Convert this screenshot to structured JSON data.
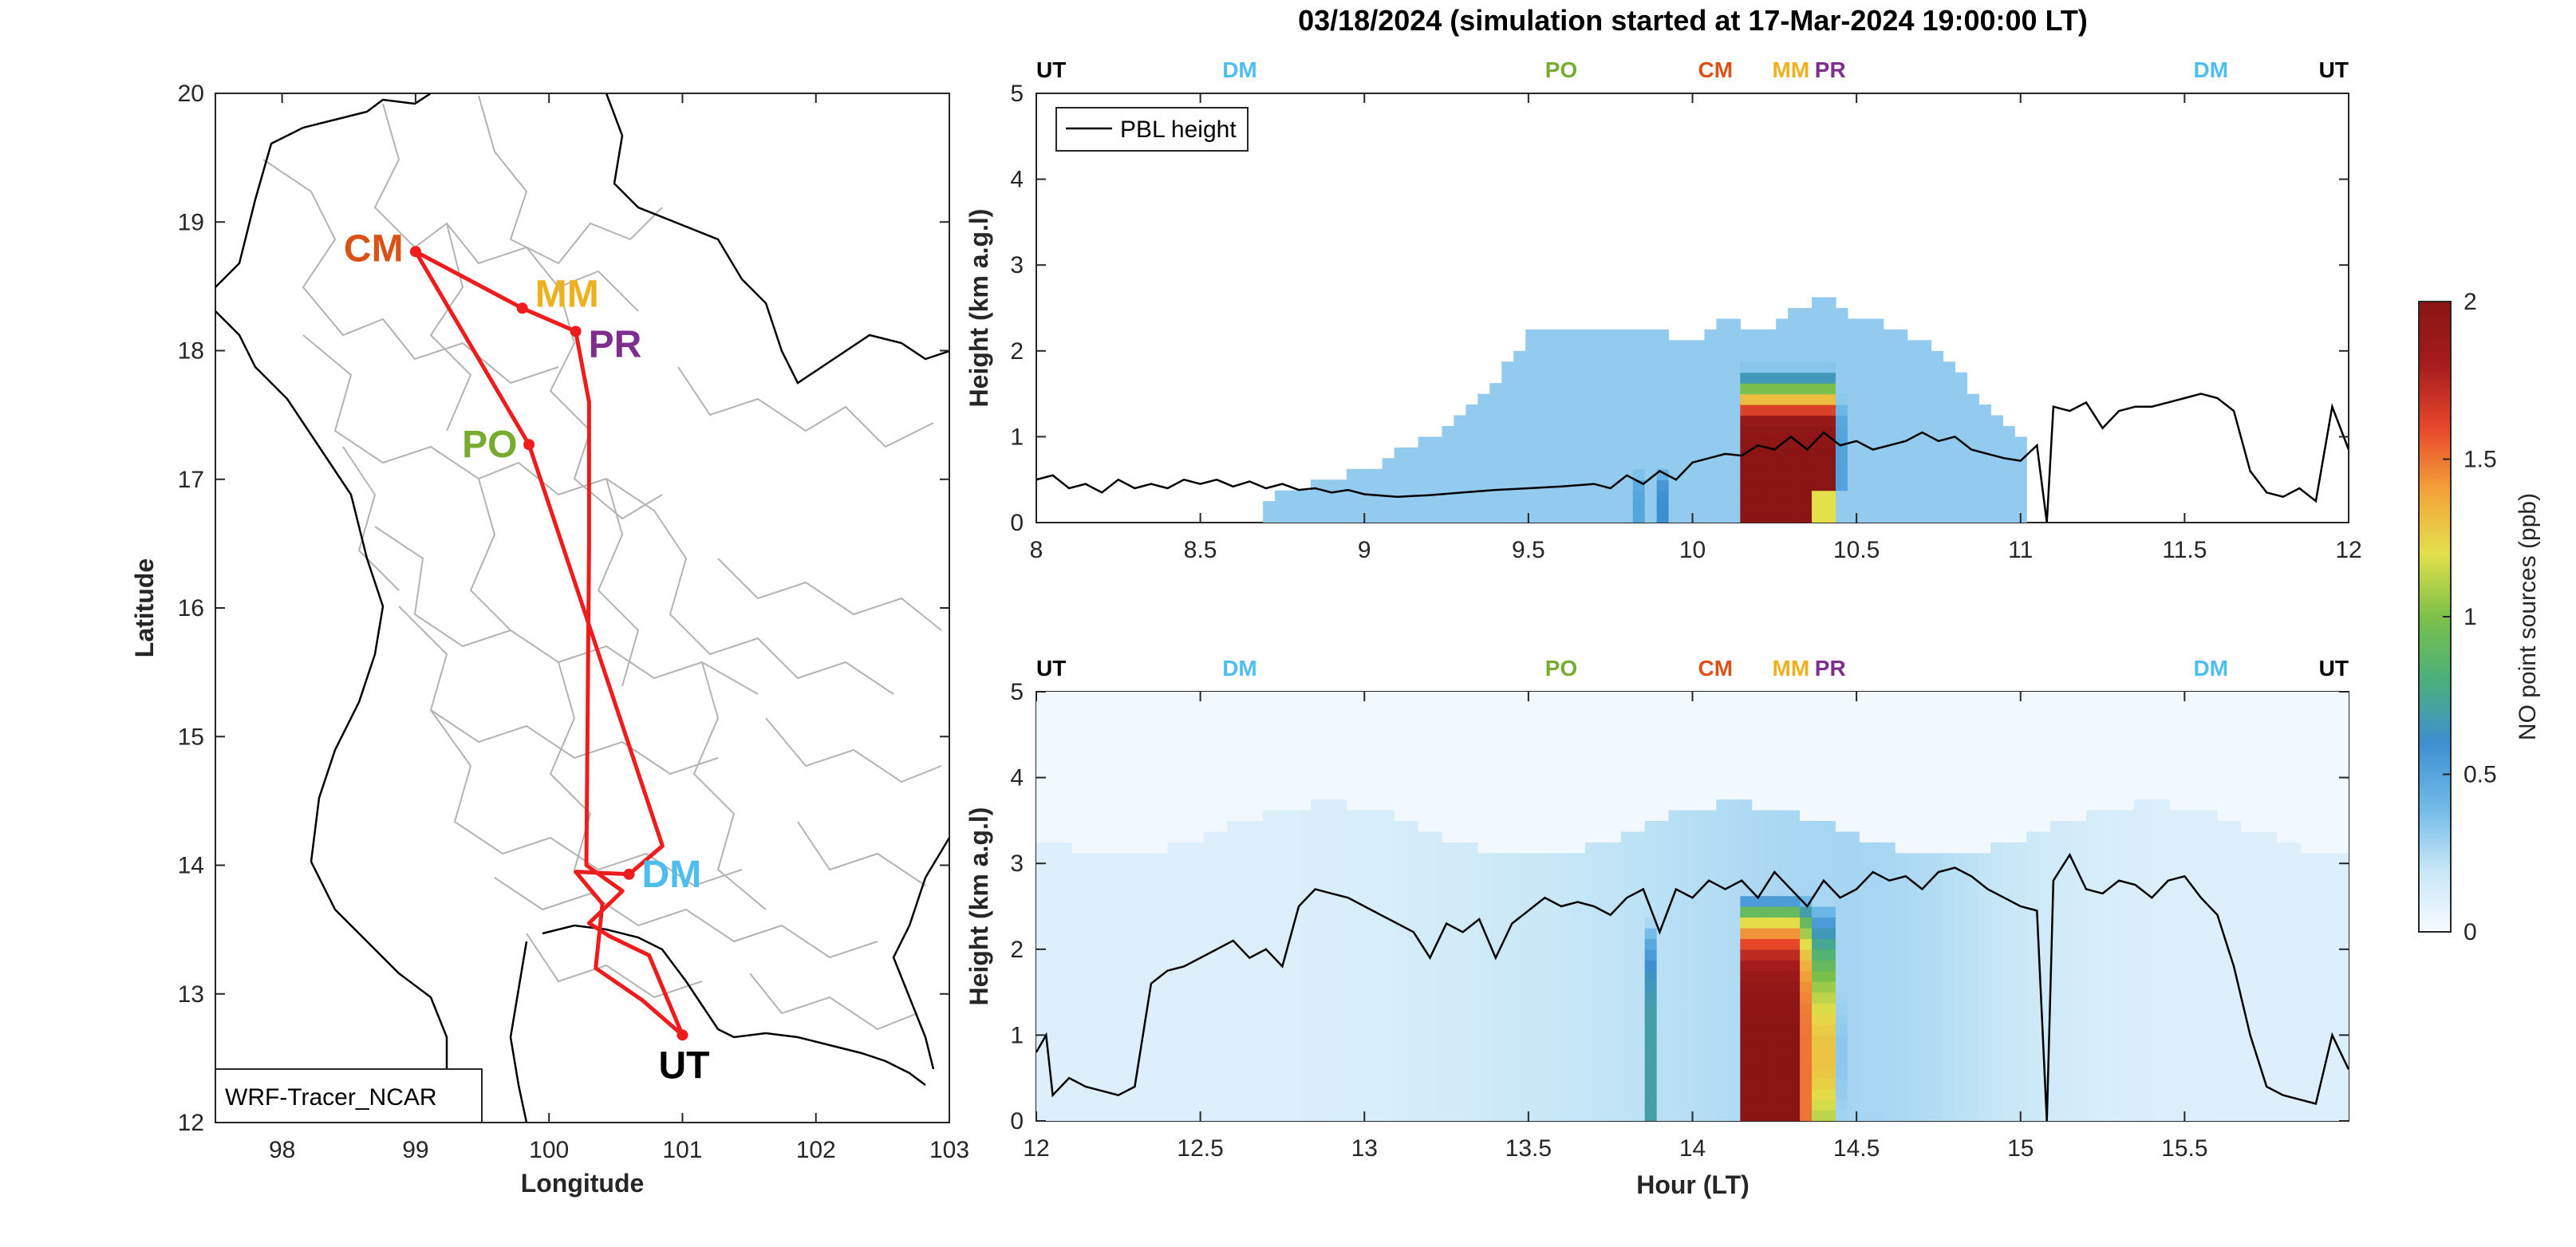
{
  "title": "03/18/2024 (simulation started at 17-Mar-2024 19:00:00 LT)",
  "map": {
    "xlabel": "Longitude",
    "ylabel": "Latitude",
    "xlim": [
      97.5,
      103
    ],
    "ylim": [
      12,
      20
    ],
    "xticks": [
      "98",
      "99",
      "100",
      "101",
      "102",
      "103"
    ],
    "yticks": [
      "12",
      "13",
      "14",
      "15",
      "16",
      "17",
      "18",
      "19",
      "20"
    ],
    "model_label": "WRF-Tracer_NCAR",
    "track_color": "#ee1c1c",
    "sites": [
      {
        "code": "CM",
        "lon": 99.0,
        "lat": 18.77,
        "color": "#d95319"
      },
      {
        "code": "MM",
        "lon": 99.8,
        "lat": 18.33,
        "color": "#edb120"
      },
      {
        "code": "PR",
        "lon": 100.2,
        "lat": 18.15,
        "color": "#7e2f8e"
      },
      {
        "code": "PO",
        "lon": 99.85,
        "lat": 17.27,
        "color": "#77ac30"
      },
      {
        "code": "DM",
        "lon": 100.6,
        "lat": 13.93,
        "color": "#4dbeee"
      },
      {
        "code": "UT",
        "lon": 101.0,
        "lat": 12.68,
        "color": "#000000"
      }
    ],
    "track": [
      [
        101.0,
        12.68
      ],
      [
        100.7,
        12.95
      ],
      [
        100.35,
        13.2
      ],
      [
        100.4,
        13.7
      ],
      [
        100.2,
        13.95
      ],
      [
        100.6,
        13.93
      ],
      [
        100.85,
        14.15
      ],
      [
        99.85,
        17.27
      ],
      [
        99.0,
        18.77
      ],
      [
        99.8,
        18.33
      ],
      [
        100.2,
        18.15
      ],
      [
        100.3,
        17.6
      ],
      [
        100.3,
        16.5
      ],
      [
        100.28,
        14.0
      ],
      [
        100.55,
        13.8
      ],
      [
        100.3,
        13.55
      ],
      [
        100.45,
        13.45
      ],
      [
        100.75,
        13.3
      ],
      [
        101.0,
        12.68
      ]
    ]
  },
  "panels": [
    {
      "xlim": [
        8,
        12
      ],
      "xticks": [
        "8",
        "8.5",
        "9",
        "9.5",
        "10",
        "10.5",
        "11",
        "11.5",
        "12"
      ],
      "ylabel": "Height (km a.g.l)",
      "yticks": [
        "0",
        "1",
        "2",
        "3",
        "4",
        "5"
      ],
      "ylim": [
        0,
        5
      ],
      "legend": "PBL height",
      "stations": [
        {
          "code": "UT",
          "hour": 8.0,
          "color": "#000000"
        },
        {
          "code": "DM",
          "hour": 8.62,
          "color": "#4dbeee"
        },
        {
          "code": "PO",
          "hour": 9.6,
          "color": "#77ac30"
        },
        {
          "code": "CM",
          "hour": 10.07,
          "color": "#d95319"
        },
        {
          "code": "MM",
          "hour": 10.3,
          "color": "#edb120"
        },
        {
          "code": "PR",
          "hour": 10.42,
          "color": "#7e2f8e"
        },
        {
          "code": "DM",
          "hour": 11.58,
          "color": "#4dbeee"
        },
        {
          "code": "UT",
          "hour": 12.0,
          "color": "#000000"
        }
      ],
      "pbl_hour": [
        8.0,
        8.05,
        8.1,
        8.15,
        8.2,
        8.25,
        8.3,
        8.35,
        8.4,
        8.45,
        8.5,
        8.55,
        8.6,
        8.65,
        8.7,
        8.75,
        8.8,
        8.85,
        8.9,
        8.95,
        9.0,
        9.1,
        9.2,
        9.3,
        9.4,
        9.5,
        9.6,
        9.7,
        9.75,
        9.8,
        9.85,
        9.9,
        9.95,
        10.0,
        10.05,
        10.1,
        10.15,
        10.2,
        10.25,
        10.3,
        10.35,
        10.4,
        10.45,
        10.5,
        10.55,
        10.6,
        10.65,
        10.7,
        10.75,
        10.8,
        10.85,
        10.9,
        10.95,
        11.0,
        11.05,
        11.08,
        11.1,
        11.15,
        11.2,
        11.25,
        11.3,
        11.35,
        11.4,
        11.45,
        11.5,
        11.55,
        11.6,
        11.65,
        11.7,
        11.75,
        11.8,
        11.85,
        11.9,
        11.95,
        12.0
      ],
      "pbl_km": [
        0.5,
        0.55,
        0.4,
        0.45,
        0.35,
        0.5,
        0.4,
        0.45,
        0.4,
        0.5,
        0.45,
        0.5,
        0.42,
        0.48,
        0.4,
        0.45,
        0.38,
        0.4,
        0.35,
        0.38,
        0.33,
        0.3,
        0.32,
        0.35,
        0.38,
        0.4,
        0.42,
        0.45,
        0.4,
        0.55,
        0.45,
        0.6,
        0.5,
        0.7,
        0.75,
        0.8,
        0.78,
        0.9,
        0.85,
        1.0,
        0.85,
        1.05,
        0.9,
        0.95,
        0.85,
        0.9,
        0.95,
        1.05,
        0.95,
        1.0,
        0.85,
        0.8,
        0.75,
        0.72,
        0.9,
        0.0,
        1.35,
        1.3,
        1.4,
        1.1,
        1.3,
        1.35,
        1.35,
        1.4,
        1.45,
        1.5,
        1.45,
        1.3,
        0.6,
        0.35,
        0.3,
        0.4,
        0.25,
        1.35,
        0.85
      ],
      "no_plumes": [
        {
          "hour": 10.3,
          "half_width": 0.14,
          "top_km": 2.0,
          "peak_ppb": 2.0
        },
        {
          "hour": 9.9,
          "half_width": 0.02,
          "top_km": 0.7,
          "peak_ppb": 0.6
        },
        {
          "hour": 9.85,
          "half_width": 0.02,
          "top_km": 0.7,
          "peak_ppb": 0.5
        }
      ],
      "background_envelope_hour": [
        8.7,
        9.0,
        9.2,
        9.4,
        9.5,
        9.7,
        9.9,
        10.0,
        10.1,
        10.2,
        10.3,
        10.4,
        10.5,
        10.6,
        10.7,
        10.8,
        10.9,
        11.0
      ],
      "background_envelope_km": [
        0.3,
        0.6,
        1.0,
        1.6,
        2.2,
        2.3,
        2.2,
        2.1,
        2.4,
        2.2,
        2.5,
        2.6,
        2.4,
        2.3,
        2.1,
        1.8,
        1.3,
        1.0
      ]
    },
    {
      "xlim": [
        12,
        16
      ],
      "xticks": [
        "12",
        "12.5",
        "13",
        "13.5",
        "14",
        "14.5",
        "15",
        "15.5"
      ],
      "xlabel": "Hour (LT)",
      "ylabel": "Height (km a.g.l)",
      "yticks": [
        "0",
        "1",
        "2",
        "3",
        "4",
        "5"
      ],
      "ylim": [
        0,
        5
      ],
      "stations": [
        {
          "code": "UT",
          "hour": 12.0,
          "color": "#000000"
        },
        {
          "code": "DM",
          "hour": 12.62,
          "color": "#4dbeee"
        },
        {
          "code": "PO",
          "hour": 13.6,
          "color": "#77ac30"
        },
        {
          "code": "CM",
          "hour": 14.07,
          "color": "#d95319"
        },
        {
          "code": "MM",
          "hour": 14.3,
          "color": "#edb120"
        },
        {
          "code": "PR",
          "hour": 14.42,
          "color": "#7e2f8e"
        },
        {
          "code": "DM",
          "hour": 15.58,
          "color": "#4dbeee"
        },
        {
          "code": "UT",
          "hour": 16.0,
          "color": "#000000"
        }
      ],
      "pbl_hour": [
        12.0,
        12.03,
        12.05,
        12.1,
        12.15,
        12.2,
        12.25,
        12.3,
        12.35,
        12.4,
        12.45,
        12.5,
        12.55,
        12.6,
        12.65,
        12.7,
        12.75,
        12.8,
        12.85,
        12.9,
        12.95,
        13.0,
        13.05,
        13.1,
        13.15,
        13.2,
        13.25,
        13.3,
        13.35,
        13.4,
        13.45,
        13.5,
        13.55,
        13.6,
        13.65,
        13.7,
        13.75,
        13.8,
        13.85,
        13.9,
        13.95,
        14.0,
        14.05,
        14.1,
        14.15,
        14.2,
        14.25,
        14.3,
        14.35,
        14.4,
        14.45,
        14.5,
        14.55,
        14.6,
        14.65,
        14.7,
        14.75,
        14.8,
        14.85,
        14.9,
        14.95,
        15.0,
        15.05,
        15.08,
        15.1,
        15.15,
        15.2,
        15.25,
        15.3,
        15.35,
        15.4,
        15.45,
        15.5,
        15.55,
        15.6,
        15.65,
        15.7,
        15.75,
        15.8,
        15.85,
        15.9,
        15.95,
        16.0
      ],
      "pbl_km": [
        0.8,
        1.0,
        0.3,
        0.5,
        0.4,
        0.35,
        0.3,
        0.4,
        1.6,
        1.75,
        1.8,
        1.9,
        2.0,
        2.1,
        1.9,
        2.0,
        1.8,
        2.5,
        2.7,
        2.65,
        2.6,
        2.5,
        2.4,
        2.3,
        2.2,
        1.9,
        2.3,
        2.2,
        2.35,
        1.9,
        2.3,
        2.45,
        2.6,
        2.5,
        2.55,
        2.5,
        2.4,
        2.6,
        2.7,
        2.2,
        2.7,
        2.6,
        2.8,
        2.7,
        2.8,
        2.6,
        2.9,
        2.7,
        2.5,
        2.8,
        2.6,
        2.7,
        2.9,
        2.8,
        2.85,
        2.7,
        2.9,
        2.95,
        2.85,
        2.7,
        2.6,
        2.5,
        2.45,
        0.0,
        2.8,
        3.1,
        2.7,
        2.65,
        2.8,
        2.75,
        2.6,
        2.8,
        2.85,
        2.6,
        2.4,
        1.8,
        1.0,
        0.4,
        0.3,
        0.25,
        0.2,
        1.0,
        0.6
      ],
      "no_plumes": [
        {
          "hour": 14.3,
          "half_width": 0.14,
          "top_km": 2.7,
          "peak_ppb": 2.0
        },
        {
          "hour": 13.87,
          "half_width": 0.02,
          "top_km": 2.5,
          "peak_ppb": 0.7
        }
      ]
    }
  ],
  "colorbar": {
    "label": "NO point sources (ppb)",
    "ticks": [
      "0",
      "0.5",
      "1",
      "1.5",
      "2"
    ],
    "range": [
      0,
      2
    ],
    "colors": [
      "#f7fbff",
      "#c6e6f7",
      "#6fb9e8",
      "#3d8fd0",
      "#4ab07a",
      "#7cc04a",
      "#e3e04a",
      "#f3a33a",
      "#e8472b",
      "#a51c1c",
      "#8a1515"
    ]
  }
}
